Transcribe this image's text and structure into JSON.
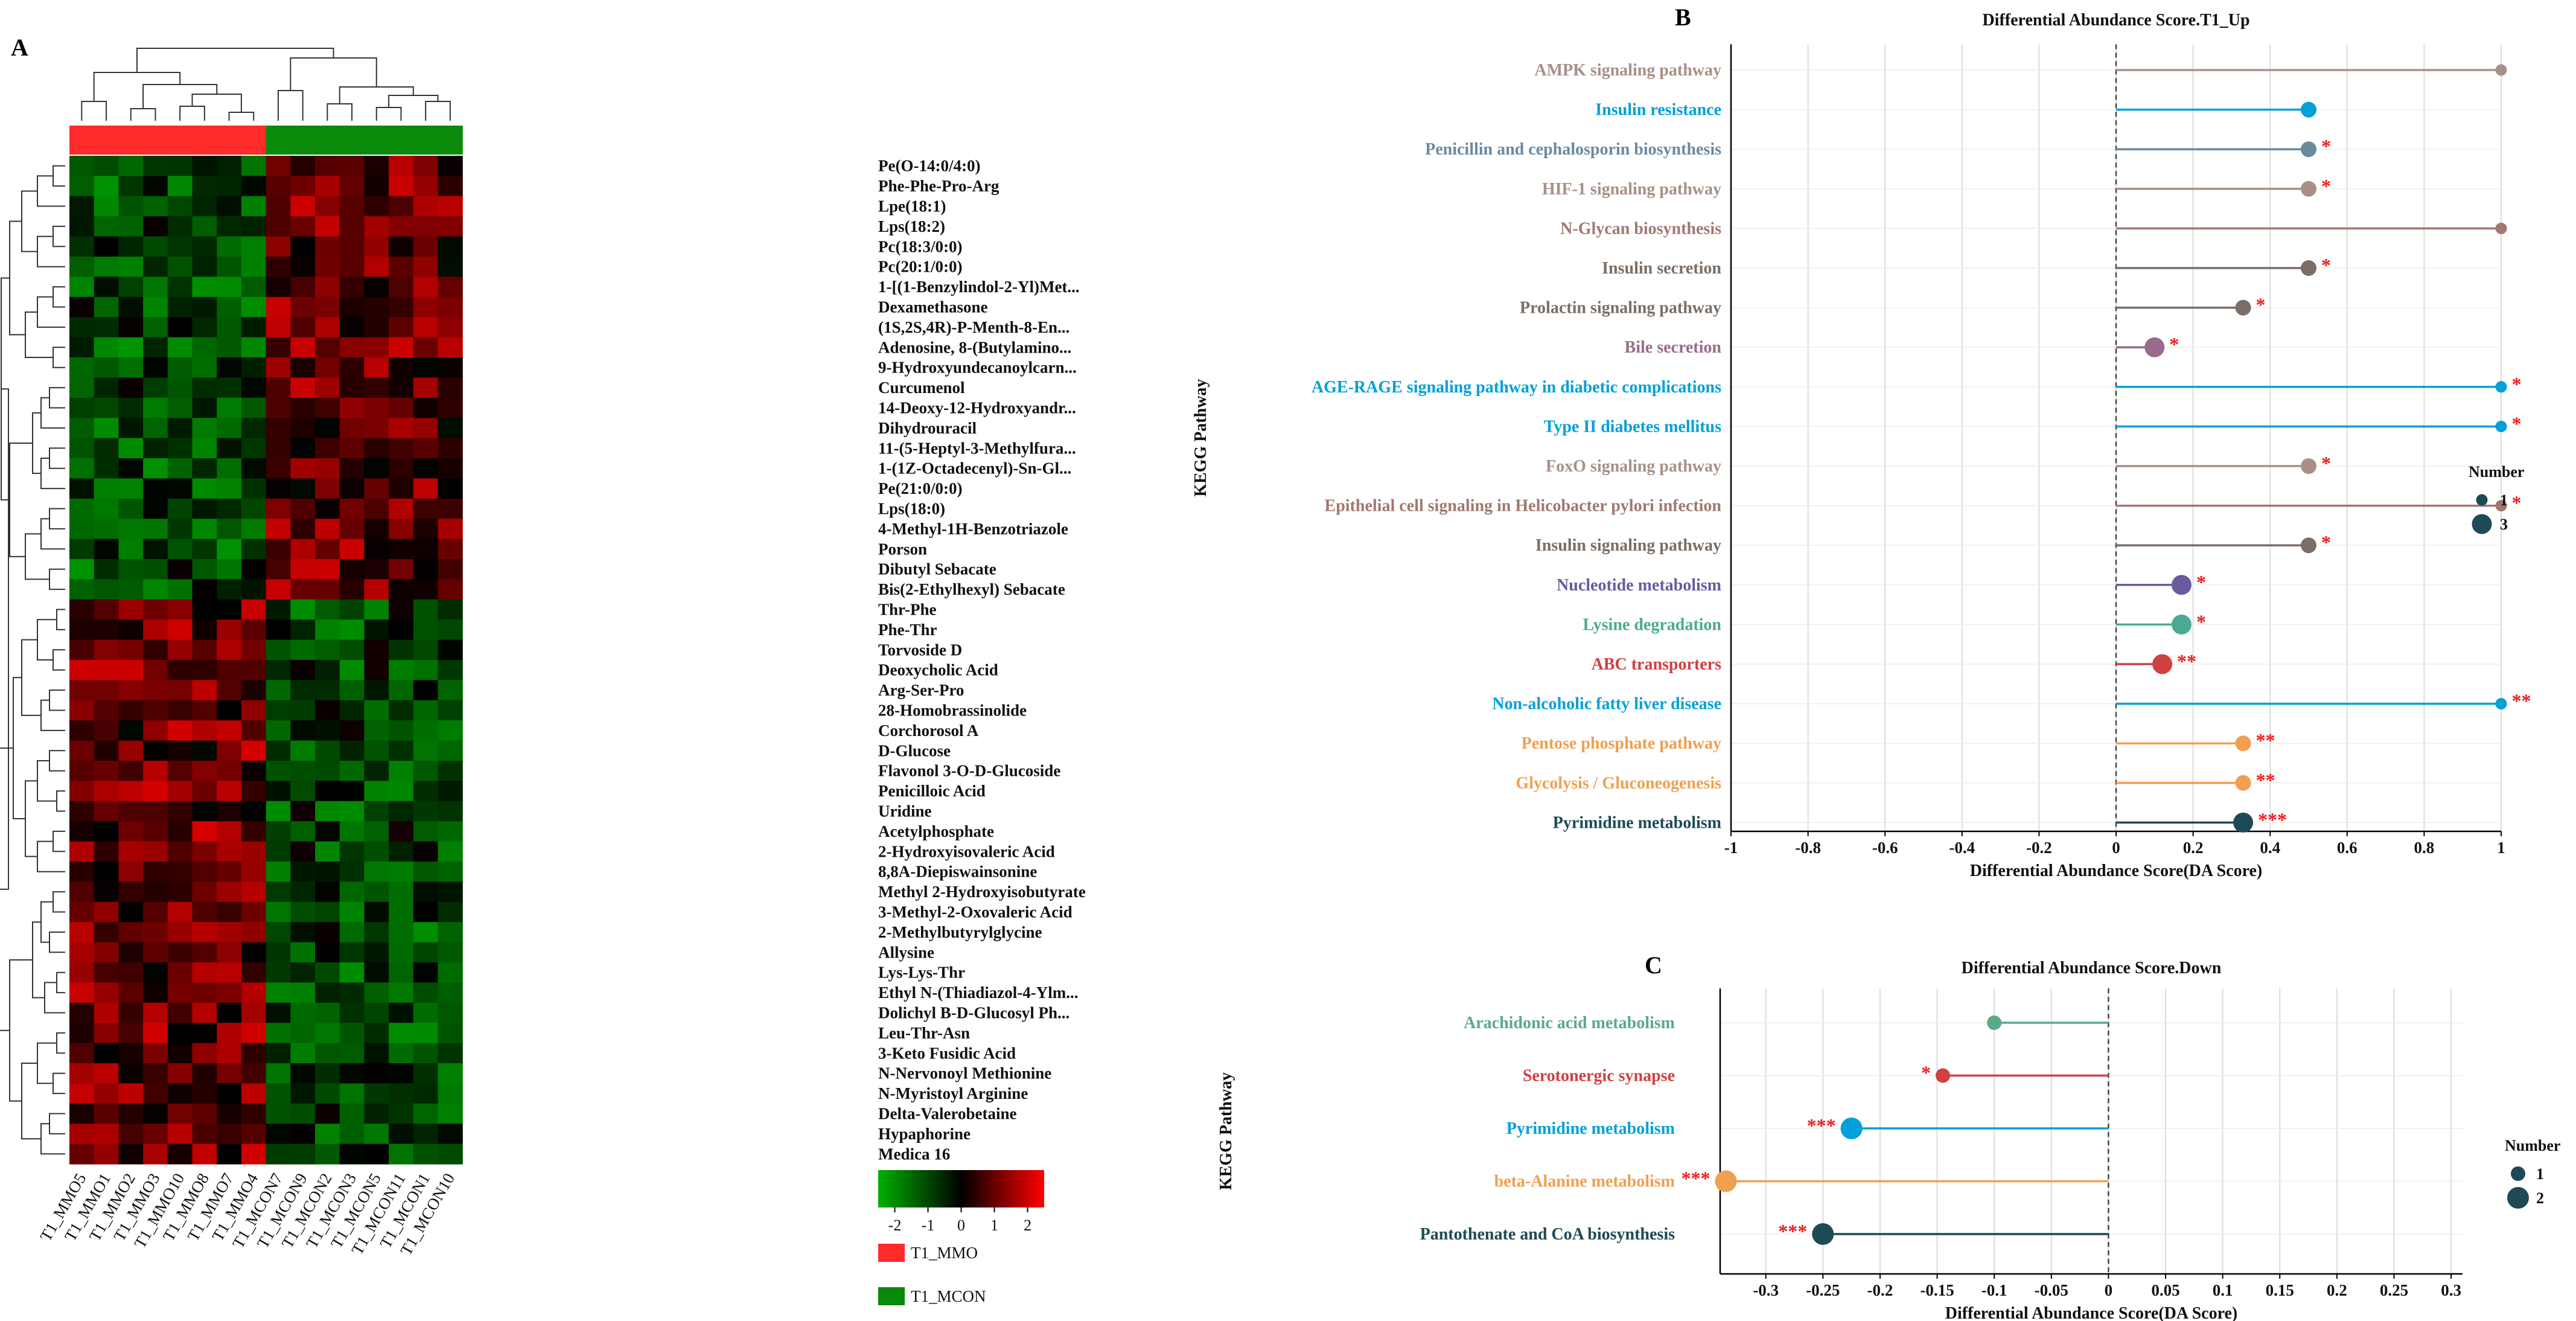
{
  "panel_labels": {
    "a": "A",
    "b": "B",
    "c": "C"
  },
  "chart_data": [
    {
      "type": "heatmap",
      "panel": "A",
      "title": "",
      "columns": [
        "T1_MMO5",
        "T1_MMO1",
        "T1_MMO2",
        "T1_MMO3",
        "T1_MMO10",
        "T1_MMO8",
        "T1_MMO7",
        "T1_MMO4",
        "T1_MCON7",
        "T1_MCON9",
        "T1_MCON2",
        "T1_MCON3",
        "T1_MCON5",
        "T1_MCON11",
        "T1_MCON1",
        "T1_MCON10"
      ],
      "column_groups": [
        "T1_MMO",
        "T1_MMO",
        "T1_MMO",
        "T1_MMO",
        "T1_MMO",
        "T1_MMO",
        "T1_MMO",
        "T1_MMO",
        "T1_MCON",
        "T1_MCON",
        "T1_MCON",
        "T1_MCON",
        "T1_MCON",
        "T1_MCON",
        "T1_MCON",
        "T1_MCON"
      ],
      "group_colors": {
        "T1_MMO": "#ff2a2a",
        "T1_MCON": "#0a8a0a"
      },
      "rows": [
        "Pe(O-14:0/4:0)",
        "Phe-Phe-Pro-Arg",
        "Lpe(18:1)",
        "Lps(18:2)",
        "Pc(18:3/0:0)",
        "Pc(20:1/0:0)",
        "1-[(1-Benzylindol-2-Yl)Met...",
        "Dexamethasone",
        "(1S,2S,4R)-P-Menth-8-En...",
        "Adenosine, 8-(Butylamino...",
        "9-Hydroxyundecanoylcarn...",
        "Curcumenol",
        "14-Deoxy-12-Hydroxyandr...",
        "Dihydrouracil",
        "11-(5-Heptyl-3-Methylfura...",
        "1-(1Z-Octadecenyl)-Sn-Gl...",
        "Pe(21:0/0:0)",
        "Lps(18:0)",
        "4-Methyl-1H-Benzotriazole",
        "Porson",
        "Dibutyl Sebacate",
        "Bis(2-Ethylhexyl) Sebacate",
        "Thr-Phe",
        "Phe-Thr",
        "Torvoside D",
        "Deoxycholic Acid",
        "Arg-Ser-Pro",
        "28-Homobrassinolide",
        "Corchorosol A",
        "D-Glucose",
        "Flavonol 3-O-D-Glucoside",
        "Penicilloic Acid",
        "Uridine",
        "Acetylphosphate",
        "2-Hydroxyisovaleric Acid",
        "8,8A-Diepiswainsonine",
        "Methyl 2-Hydroxyisobutyrate",
        "3-Methyl-2-Oxovaleric Acid",
        "2-Methylbutyrylglycine",
        "Allysine",
        "Lys-Lys-Thr",
        "Ethyl N-(Thiadiazol-4-Ylm...",
        "Dolichyl B-D-Glucosyl Ph...",
        "Leu-Thr-Asn",
        "3-Keto Fusidic Acid",
        "N-Nervonoyl Methionine",
        "N-Myristoyl Arginine",
        "Delta-Valerobetaine",
        "Hypaphorine",
        "Medica 16"
      ],
      "row_cluster_split": 22,
      "color_scale": {
        "min": -2.5,
        "max": 2.5,
        "low": "#00b000",
        "mid": "#000000",
        "high": "#ff0000"
      },
      "legend_ticks": [
        "-2",
        "-1",
        "0",
        "1",
        "2"
      ],
      "legend_groups": [
        "T1_MMO",
        "T1_MCON"
      ]
    },
    {
      "type": "lollipop",
      "panel": "B",
      "title": "Differential Abundance Score.T1_Up",
      "xlabel": "Differential Abundance Score(DA Score)",
      "ylabel": "KEGG Pathway",
      "xlim": [
        -1,
        1
      ],
      "xticks": [
        "-1",
        "-0.8",
        "-0.6",
        "-0.4",
        "-0.2",
        "0",
        "0.2",
        "0.4",
        "0.6",
        "0.8",
        "1"
      ],
      "size_legend_title": "Number",
      "size_legend": [
        {
          "label": "1",
          "value": 1
        },
        {
          "label": "3",
          "value": 3
        }
      ],
      "items": [
        {
          "pathway": "AMPK signaling pathway",
          "score": 1.0,
          "count": 1,
          "sig": "",
          "color": "#a89088"
        },
        {
          "pathway": "Insulin resistance",
          "score": 0.5,
          "count": 2,
          "sig": "",
          "color": "#00a0d8"
        },
        {
          "pathway": "Penicillin and cephalosporin biosynthesis",
          "score": 0.5,
          "count": 2,
          "sig": "*",
          "color": "#6a8aa0"
        },
        {
          "pathway": "HIF-1 signaling pathway",
          "score": 0.5,
          "count": 2,
          "sig": "*",
          "color": "#a89088"
        },
        {
          "pathway": "N-Glycan biosynthesis",
          "score": 1.0,
          "count": 1,
          "sig": "",
          "color": "#a07870"
        },
        {
          "pathway": "Insulin secretion",
          "score": 0.5,
          "count": 2,
          "sig": "*",
          "color": "#7a6e66"
        },
        {
          "pathway": "Prolactin signaling pathway",
          "score": 0.33,
          "count": 2,
          "sig": "*",
          "color": "#7a6e66"
        },
        {
          "pathway": "Bile secretion",
          "score": 0.1,
          "count": 3,
          "sig": "*",
          "color": "#9a6a8a"
        },
        {
          "pathway": "AGE-RAGE signaling pathway in diabetic complications",
          "score": 1.0,
          "count": 1,
          "sig": "*",
          "color": "#00a0d8"
        },
        {
          "pathway": "Type II diabetes mellitus",
          "score": 1.0,
          "count": 1,
          "sig": "*",
          "color": "#00a0d8"
        },
        {
          "pathway": "FoxO signaling pathway",
          "score": 0.5,
          "count": 2,
          "sig": "*",
          "color": "#a89088"
        },
        {
          "pathway": "Epithelial cell signaling in Helicobacter pylori infection",
          "score": 1.0,
          "count": 1,
          "sig": "*",
          "color": "#a07870"
        },
        {
          "pathway": "Insulin signaling pathway",
          "score": 0.5,
          "count": 2,
          "sig": "*",
          "color": "#7a6e66"
        },
        {
          "pathway": "Nucleotide metabolism",
          "score": 0.17,
          "count": 3,
          "sig": "*",
          "color": "#6a5aa0"
        },
        {
          "pathway": "Lysine degradation",
          "score": 0.17,
          "count": 3,
          "sig": "*",
          "color": "#4aaa90"
        },
        {
          "pathway": "ABC transporters",
          "score": 0.12,
          "count": 3,
          "sig": "**",
          "color": "#d04040"
        },
        {
          "pathway": "Non-alcoholic fatty liver disease",
          "score": 1.0,
          "count": 1,
          "sig": "**",
          "color": "#00a0d8"
        },
        {
          "pathway": "Pentose phosphate pathway",
          "score": 0.33,
          "count": 2,
          "sig": "**",
          "color": "#f0a050"
        },
        {
          "pathway": "Glycolysis / Gluconeogenesis",
          "score": 0.33,
          "count": 2,
          "sig": "**",
          "color": "#f0a050"
        },
        {
          "pathway": "Pyrimidine metabolism",
          "score": 0.33,
          "count": 3,
          "sig": "***",
          "color": "#1e4a55"
        }
      ]
    },
    {
      "type": "lollipop",
      "panel": "C",
      "title": "Differential Abundance Score.Down",
      "xlabel": "Differential Abundance Score(DA Score)",
      "ylabel": "KEGG Pathway",
      "xlim": [
        -0.34,
        0.31
      ],
      "xticks": [
        "-0.3",
        "-0.25",
        "-0.2",
        "-0.15",
        "-0.1",
        "-0.05",
        "0",
        "0.05",
        "0.1",
        "0.15",
        "0.2",
        "0.25",
        "0.3"
      ],
      "size_legend_title": "Number",
      "size_legend": [
        {
          "label": "1",
          "value": 1
        },
        {
          "label": "2",
          "value": 2
        }
      ],
      "items": [
        {
          "pathway": "Arachidonic acid metabolism",
          "score": -0.1,
          "count": 1,
          "sig": "",
          "color": "#5aaa88"
        },
        {
          "pathway": "Serotonergic synapse",
          "score": -0.145,
          "count": 1,
          "sig": "*",
          "color": "#d04040"
        },
        {
          "pathway": "Pyrimidine metabolism",
          "score": -0.225,
          "count": 2,
          "sig": "***",
          "color": "#00a0d8"
        },
        {
          "pathway": "beta-Alanine metabolism",
          "score": -0.335,
          "count": 2,
          "sig": "***",
          "color": "#f0a050"
        },
        {
          "pathway": "Pantothenate and CoA biosynthesis",
          "score": -0.25,
          "count": 2,
          "sig": "***",
          "color": "#1e4a55"
        }
      ]
    }
  ]
}
